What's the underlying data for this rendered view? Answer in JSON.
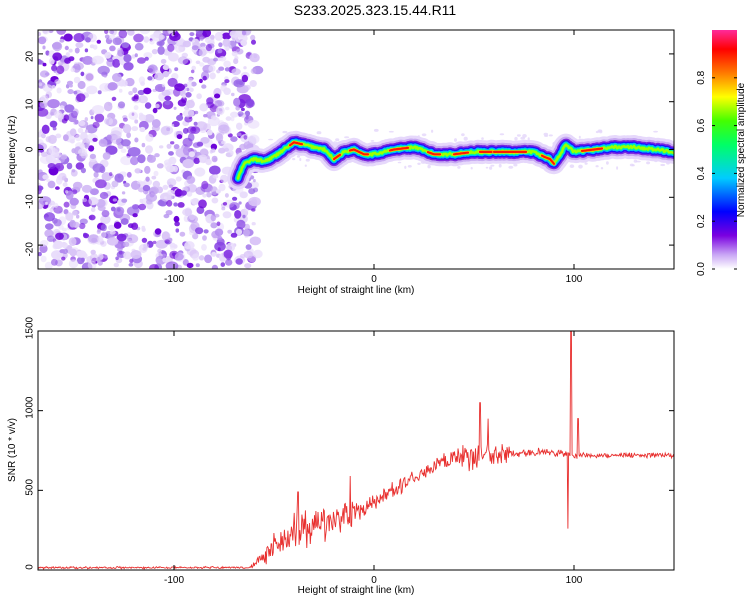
{
  "title": "S233.2025.323.15.44.R11",
  "chart_data": [
    {
      "type": "heatmap",
      "xlabel": "Height of straight line (km)",
      "ylabel": "Frequency (Hz)",
      "xlim": [
        -168,
        150
      ],
      "ylim": [
        -25,
        25
      ],
      "xticks": [
        -100,
        0,
        100
      ],
      "yticks": [
        -20,
        -10,
        0,
        10,
        20
      ],
      "colorbar": {
        "label": "Normalized spectral amplitude",
        "range": [
          0,
          1
        ],
        "ticks": [
          "0.0",
          "0.2",
          "0.4",
          "0.6",
          "0.8"
        ]
      },
      "ridge": {
        "x": [
          -68,
          -65,
          -60,
          -55,
          -50,
          -45,
          -40,
          -35,
          -30,
          -25,
          -20,
          -15,
          -10,
          -5,
          0,
          10,
          20,
          30,
          40,
          50,
          60,
          70,
          80,
          85,
          88,
          90,
          93,
          96,
          100,
          110,
          120,
          130,
          140,
          150
        ],
        "y": [
          -6,
          -3,
          -2,
          -2.5,
          -1.5,
          0,
          1.5,
          1,
          0.5,
          0,
          -2,
          -0.5,
          0,
          -1,
          -1,
          0,
          0.5,
          -1,
          -1,
          -0.5,
          -0.5,
          -0.5,
          -0.5,
          -1.5,
          -2,
          -3,
          -1,
          1,
          -0.5,
          0,
          0.5,
          0.5,
          0,
          -0.5
        ]
      },
      "noise_region_xmax": -62
    },
    {
      "type": "line",
      "xlabel": "Height of straight line (km)",
      "ylabel": "SNR (10 * v/v)",
      "xlim": [
        -168,
        150
      ],
      "ylim": [
        0,
        1500
      ],
      "xticks": [
        -100,
        0,
        100
      ],
      "yticks": [
        0,
        500,
        1000,
        1500
      ],
      "color": "#e8302f",
      "envelope": {
        "x": [
          -168,
          -62,
          -58,
          -50,
          -40,
          -30,
          -20,
          -10,
          0,
          10,
          20,
          30,
          40,
          50,
          60,
          70,
          80,
          90,
          100,
          110,
          120,
          130,
          140,
          150
        ],
        "mean": [
          15,
          15,
          60,
          150,
          230,
          270,
          320,
          360,
          420,
          500,
          580,
          650,
          700,
          720,
          720,
          730,
          740,
          740,
          720,
          720,
          720,
          720,
          720,
          720
        ],
        "amp": [
          8,
          8,
          40,
          120,
          150,
          130,
          120,
          100,
          80,
          60,
          50,
          50,
          80,
          130,
          100,
          40,
          30,
          30,
          25,
          20,
          20,
          20,
          20,
          20
        ]
      },
      "spikes": [
        {
          "x": 53,
          "y": 1050
        },
        {
          "x": 57,
          "y": 950
        },
        {
          "x": 98.5,
          "y": 1500
        },
        {
          "x": 97,
          "y": 260
        },
        {
          "x": 102,
          "y": 950
        },
        {
          "x": -38,
          "y": 490
        },
        {
          "x": -12,
          "y": 590
        }
      ]
    }
  ]
}
